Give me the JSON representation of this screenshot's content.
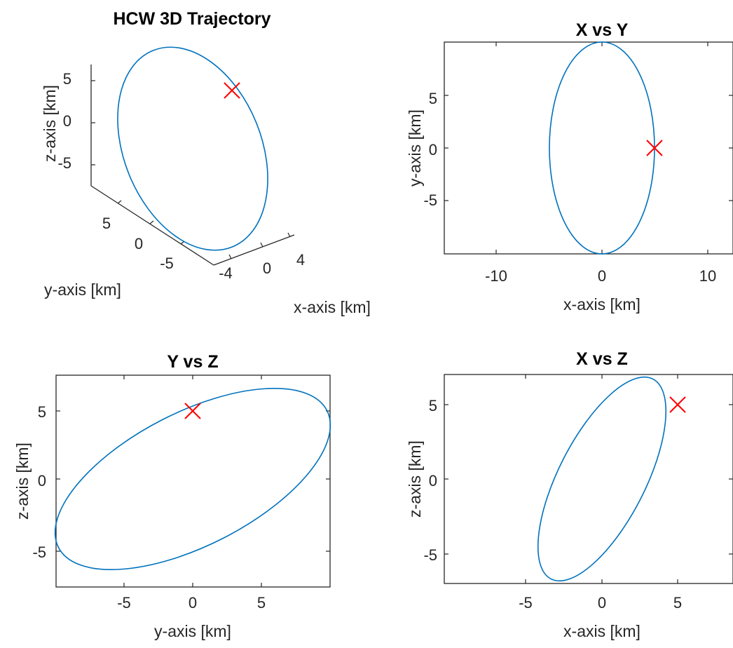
{
  "colors": {
    "trajectory": "#0072bd",
    "start_marker": "#ff0000",
    "axes": "#262626"
  },
  "chart_data": [
    {
      "type": "line3d",
      "title": "HCW 3D Trajectory",
      "xlabel": "x-axis [km]",
      "ylabel": "y-axis [km]",
      "zlabel": "z-axis [km]",
      "xticks": [
        "-4",
        "0",
        "4"
      ],
      "yticks": [
        "5",
        "0",
        "-5"
      ],
      "zticks": [
        "5",
        "0",
        "-5"
      ],
      "xlim": [
        -5,
        5
      ],
      "ylim": [
        -10,
        10
      ],
      "zlim": [
        -7.1,
        7.1
      ],
      "series": [
        {
          "x_amplitude": 5,
          "y_amplitude": 10,
          "z_amplitude": 7.07,
          "closed_ellipse": true
        }
      ],
      "marker": {
        "x": 5,
        "y": 0,
        "z": 5,
        "symbol": "x"
      }
    },
    {
      "type": "line",
      "title": "X vs Y",
      "xlabel": "x-axis [km]",
      "ylabel": "y-axis [km]",
      "xlim": [
        -13.3,
        13.3
      ],
      "ylim": [
        -10,
        10
      ],
      "xticks": [
        "-10",
        "0",
        "10"
      ],
      "yticks": [
        "5",
        "0",
        "-5"
      ],
      "series": [
        {
          "shape": "ellipse",
          "x_amplitude": 5,
          "y_amplitude": 10,
          "center": [
            0,
            0
          ]
        }
      ],
      "marker": {
        "x": 5,
        "y": 0,
        "symbol": "x"
      }
    },
    {
      "type": "line",
      "title": "Y vs Z",
      "xlabel": "y-axis [km]",
      "ylabel": "z-axis [km]",
      "xlim": [
        -10,
        10
      ],
      "ylim": [
        -7.5,
        7.5
      ],
      "xticks": [
        "-5",
        "0",
        "5"
      ],
      "yticks": [
        "5",
        "0",
        "-5"
      ],
      "series": [
        {
          "shape": "ellipse",
          "y_amplitude": 10,
          "z_amplitude": 7.07,
          "center": [
            0,
            0
          ]
        }
      ],
      "marker": {
        "x": 0,
        "y": 5,
        "symbol": "x"
      }
    },
    {
      "type": "line",
      "title": "X vs Z",
      "xlabel": "x-axis [km]",
      "ylabel": "z-axis [km]",
      "xlim": [
        -9.5,
        9.5
      ],
      "ylim": [
        -7.1,
        7.1
      ],
      "xticks": [
        "-5",
        "0",
        "5"
      ],
      "yticks": [
        "5",
        "0",
        "-5"
      ],
      "series": [
        {
          "shape": "ellipse",
          "x_amplitude": 5,
          "z_amplitude": 7.07,
          "center": [
            0,
            0
          ]
        }
      ],
      "marker": {
        "x": 5,
        "y": 5,
        "symbol": "x"
      }
    }
  ]
}
